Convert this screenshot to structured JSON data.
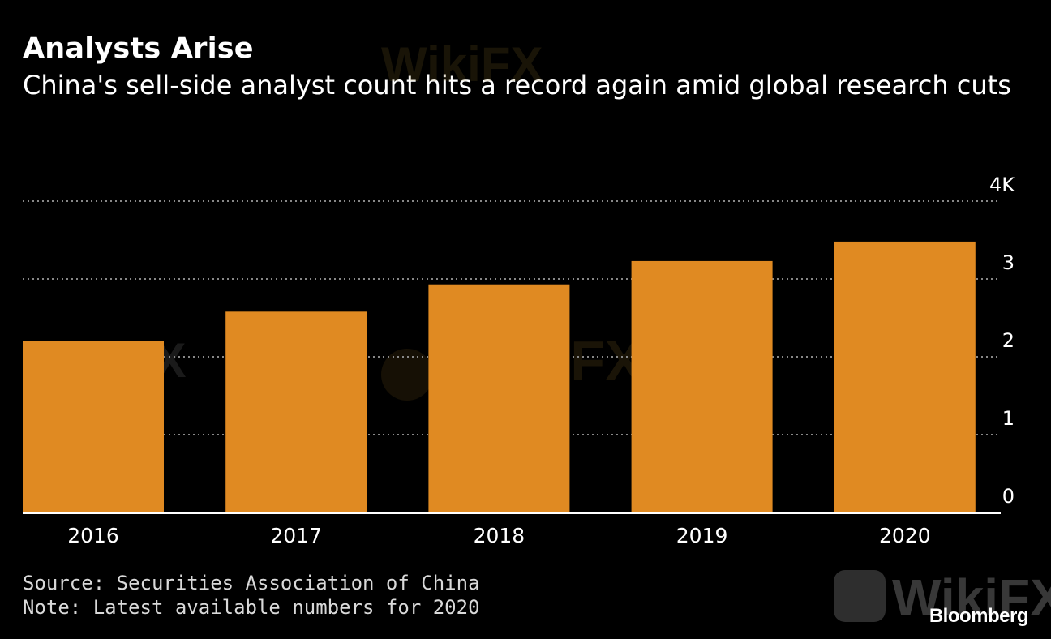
{
  "header": {
    "title": "Analysts Arise",
    "subtitle": "China's sell-side analyst count hits a record again amid global research cuts"
  },
  "footer": {
    "source": "Source: Securities Association of China",
    "note": "Note: Latest available numbers for 2020",
    "brand": "Bloomberg"
  },
  "watermark": {
    "text": "WikiFX"
  },
  "colors": {
    "bar": "#e08a22",
    "grid": "#888888",
    "axis": "#ffffff",
    "background": "#000000"
  },
  "chart_data": {
    "type": "bar",
    "categories": [
      "2016",
      "2017",
      "2018",
      "2019",
      "2020"
    ],
    "values": [
      2.2,
      2.58,
      2.93,
      3.23,
      3.48
    ],
    "ylim": [
      0,
      4
    ],
    "yticks": [
      0,
      1,
      2,
      3,
      4
    ],
    "ytick_labels": [
      "0",
      "1",
      "2",
      "3",
      "4K"
    ],
    "yaxis_position": "right",
    "grid": true,
    "grid_style": "dotted",
    "legend": "none"
  }
}
